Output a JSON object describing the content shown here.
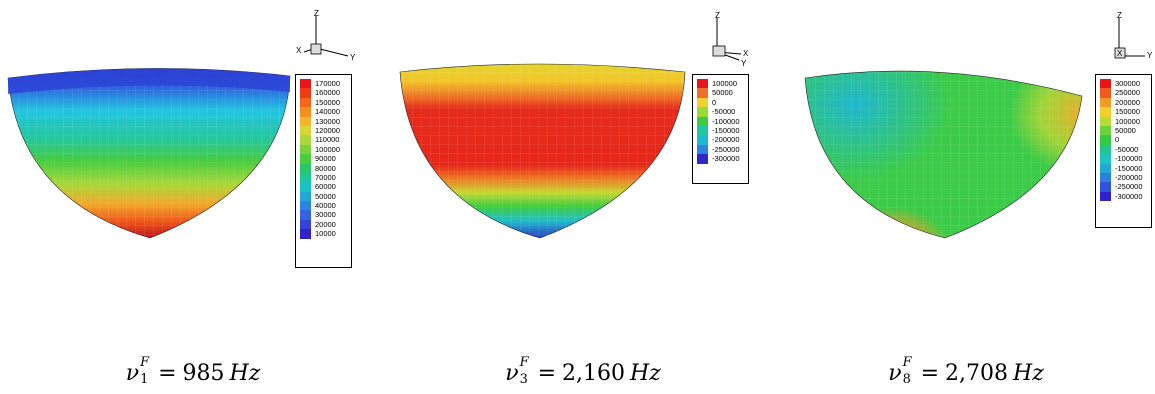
{
  "panels": [
    {
      "axes": {
        "z": "Z",
        "x": "X",
        "y": "Y"
      },
      "legend": [
        "170000",
        "160000",
        "150000",
        "140000",
        "130000",
        "120000",
        "110000",
        "100000",
        "90000",
        "80000",
        "70000",
        "60000",
        "50000",
        "40000",
        "30000",
        "20000",
        "10000"
      ],
      "legend_colors": [
        "#e8151b",
        "#f03a14",
        "#f3661b",
        "#f49022",
        "#f2b52b",
        "#d8d634",
        "#a9d93a",
        "#7bd23c",
        "#4ccc3f",
        "#28c76a",
        "#1ec79a",
        "#1ac4c6",
        "#22a7d8",
        "#2b86de",
        "#3464e0",
        "#3642d8",
        "#2f22c8"
      ],
      "caption": {
        "symbol": "ν",
        "sup": "F",
        "sub": "1",
        "value": "985",
        "unit": "Hz"
      }
    },
    {
      "axes": {
        "z": "Z",
        "x": "X",
        "y": "Y"
      },
      "legend": [
        "100000",
        "50000",
        "0",
        "-50000",
        "-100000",
        "-150000",
        "-200000",
        "-250000",
        "-300000"
      ],
      "legend_colors": [
        "#e8151b",
        "#f0702a",
        "#f0d22a",
        "#9adb35",
        "#3fcc42",
        "#22c7a0",
        "#1eb8d2",
        "#2d83df",
        "#2f2ac6"
      ],
      "caption": {
        "symbol": "ν",
        "sup": "F",
        "sub": "3",
        "value": "2,160",
        "unit": "Hz"
      }
    },
    {
      "axes": {
        "z": "Z",
        "x": "X",
        "y": "Y"
      },
      "legend": [
        "300000",
        "250000",
        "200000",
        "150000",
        "100000",
        "50000",
        "0",
        "-50000",
        "-100000",
        "-150000",
        "-200000",
        "-250000",
        "-300000"
      ],
      "legend_colors": [
        "#e8151b",
        "#f05a1f",
        "#f29b27",
        "#f2d12c",
        "#b9db35",
        "#6bd23b",
        "#33ca44",
        "#22c88a",
        "#1ec5bf",
        "#22a9d8",
        "#2b80df",
        "#3352dc",
        "#2f22c8"
      ],
      "caption": {
        "symbol": "ν",
        "sup": "F",
        "sub": "8",
        "value": "2,708",
        "unit": "Hz"
      }
    }
  ]
}
